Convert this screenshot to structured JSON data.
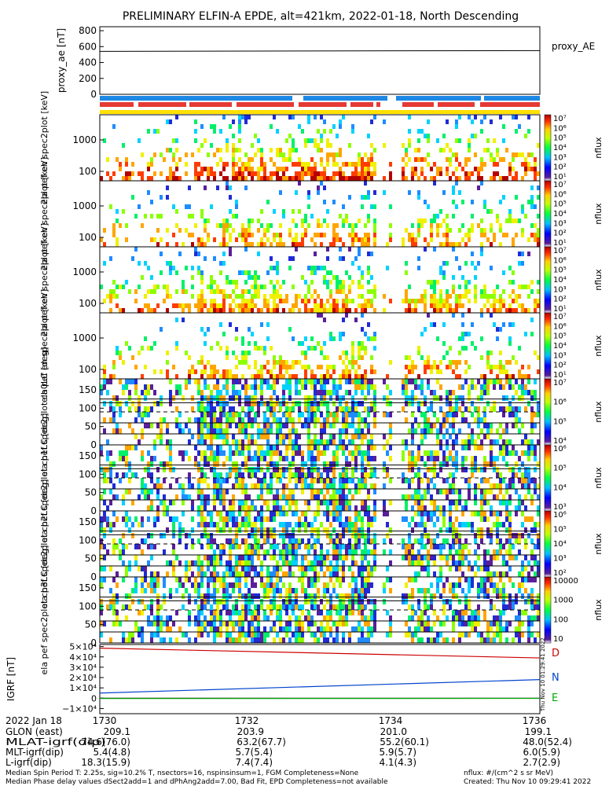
{
  "title": "PRELIMINARY ELFIN-A EPDE, alt=421km, 2022-01-18, North Descending",
  "colors": {
    "sc_bar": "#1e88e5",
    "epd_bar": "#e53935",
    "yellow_bar": "#ffe000",
    "line_D": "#cc0000",
    "line_N": "#0044cc",
    "line_E": "#00aa00"
  },
  "chart_data": [
    {
      "id": "proxy_ae",
      "type": "line",
      "ylabel": "proxy_ae [nT]",
      "legend": "proxy_AE",
      "yticks": [
        "0",
        "200",
        "400",
        "600",
        "800"
      ],
      "ylim": [
        0,
        850
      ],
      "x": [
        "1729.4",
        "1736.2"
      ],
      "values": [
        540,
        550
      ]
    },
    {
      "id": "spec_en_0",
      "type": "heatmap",
      "ylabel": "ela pef en spec2plot [keV]",
      "yticks": [
        "100",
        "1000"
      ],
      "cbar_label": "nflux",
      "cbar_ticks": [
        "10⁷",
        "10⁶",
        "10⁵",
        "10⁴",
        "10³",
        "10²",
        "10¹"
      ]
    },
    {
      "id": "spec_en_1",
      "type": "heatmap",
      "ylabel": "ela pef en spec2plot [keV]",
      "yticks": [
        "100",
        "1000"
      ],
      "cbar_label": "nflux",
      "cbar_ticks": [
        "10⁷",
        "10⁶",
        "10⁵",
        "10⁴",
        "10³",
        "10²",
        "10¹"
      ]
    },
    {
      "id": "spec_en_2",
      "type": "heatmap",
      "ylabel": "ela pef en spec2plot [keV]",
      "yticks": [
        "100",
        "1000"
      ],
      "cbar_label": "nflux",
      "cbar_ticks": [
        "10⁷",
        "10⁶",
        "10⁵",
        "10⁴",
        "10³",
        "10²",
        "10¹"
      ]
    },
    {
      "id": "spec_en_3",
      "type": "heatmap",
      "ylabel": "ela pef en spec2plot [keV]",
      "yticks": [
        "100",
        "1000"
      ],
      "cbar_label": "nflux",
      "cbar_ticks": [
        "10⁷",
        "10⁶",
        "10⁵",
        "10⁴",
        "10³",
        "10²",
        "10¹"
      ]
    },
    {
      "id": "pa_ch0",
      "type": "heatmap",
      "ylabel": "ela pef spec2plot ch0LC [deg]",
      "yticks": [
        "0",
        "50",
        "100",
        "150"
      ],
      "cbar_label": "nflux",
      "cbar_ticks": [
        "10⁷",
        "10⁶",
        "10⁵",
        "10⁴"
      ]
    },
    {
      "id": "pa_ch1",
      "type": "heatmap",
      "ylabel": "ela pef spec2plot ch1LC [deg]",
      "yticks": [
        "0",
        "50",
        "100",
        "150"
      ],
      "cbar_label": "nflux",
      "cbar_ticks": [
        "10⁶",
        "10⁵",
        "10⁴",
        "10³"
      ]
    },
    {
      "id": "pa_ch2",
      "type": "heatmap",
      "ylabel": "ela pef spec2plot ch2LC [deg]",
      "yticks": [
        "0",
        "50",
        "100",
        "150"
      ],
      "cbar_label": "nflux",
      "cbar_ticks": [
        "10⁶",
        "10⁵",
        "10⁴",
        "10³",
        "10²"
      ]
    },
    {
      "id": "pa_ch3",
      "type": "heatmap",
      "ylabel": "ela pef spec2plot ch3LC [deg]",
      "yticks": [
        "0",
        "50",
        "100",
        "150"
      ],
      "cbar_label": "nflux",
      "cbar_ticks": [
        "10000",
        "1000",
        "100",
        "10"
      ]
    },
    {
      "id": "igrf",
      "type": "line",
      "ylabel": "IGRF [nT]",
      "yticks": [
        "−1×10⁴",
        "0",
        "1×10⁴",
        "2×10⁴",
        "3×10⁴",
        "4×10⁴",
        "5×10⁴"
      ],
      "ylim": [
        -15000,
        52000
      ],
      "series": [
        {
          "name": "D",
          "x": [
            "1729.4",
            "1736.2"
          ],
          "values": [
            48500,
            39000
          ]
        },
        {
          "name": "N",
          "x": [
            "1729.4",
            "1736.2"
          ],
          "values": [
            5000,
            18000
          ]
        },
        {
          "name": "E",
          "x": [
            "1729.4",
            "1736.2"
          ],
          "values": [
            -300,
            -200
          ]
        }
      ]
    }
  ],
  "xaxis": {
    "date": "2022 Jan 18",
    "ticks": [
      "1730",
      "1732",
      "1734",
      "1736"
    ],
    "rows": [
      {
        "label": "GLON (east)",
        "values": [
          "209.1",
          "203.9",
          "201.0",
          "199.1"
        ]
      },
      {
        "label": "MLAT-igrf(dip)",
        "values": [
          "74.6(76.0)",
          "63.2(67.7)",
          "55.2(60.1)",
          "48.0(52.4)"
        ]
      },
      {
        "label": "MLT-igrf(dip)",
        "values": [
          "5.4(4.8)",
          "5.7(5.4)",
          "5.9(5.7)",
          "6.0(5.9)"
        ]
      },
      {
        "label": "L-igrf(dip)",
        "values": [
          "18.3(15.9)",
          "7.4(7.4)",
          "4.1(4.3)",
          "2.7(2.9)"
        ]
      }
    ]
  },
  "footer": {
    "line1": "Median Spin Period T: 2.25s, sig=10.2% T, nsectors=16, nspinsinsum=1, FGM Completeness=None",
    "line2": "Median Phase delay values dSect2add=1 and dPhAng2add=7.00, Bad Fit, EPD Completeness=not available",
    "units": "nflux: #/(cm^2 s sr MeV)",
    "created": "Created: Thu Nov 10 09:29:41 2022",
    "side_stamp": "Thu Nov 10 01:29:41 2022"
  }
}
